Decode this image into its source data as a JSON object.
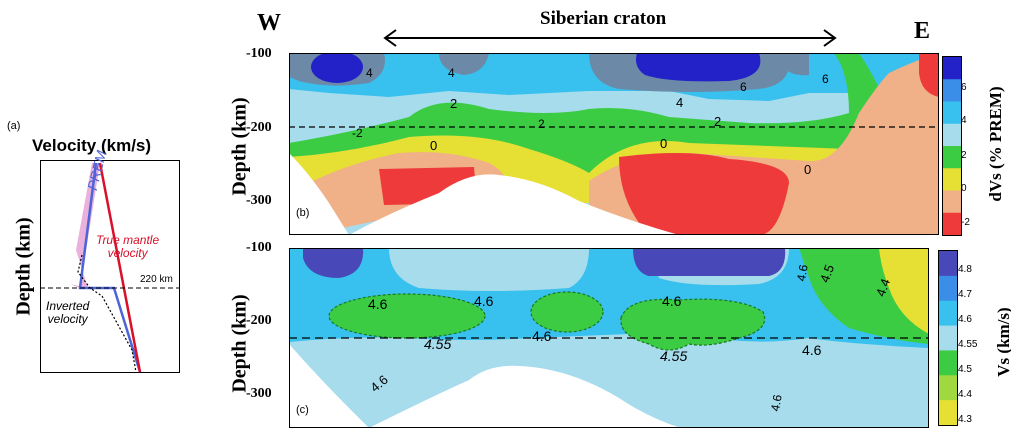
{
  "panel_a": {
    "label": "(a)",
    "title": "Velocity (km/s)",
    "ylabel": "Depth (km)",
    "prem": "PREM",
    "true_vel_line1": "True mantle",
    "true_vel_line2": "velocity",
    "depth_220": "220 km",
    "inverted_line1": "Inverted",
    "inverted_line2": "velocity"
  },
  "header": {
    "west": "W",
    "east": "E",
    "craton": "Siberian craton"
  },
  "panel_b": {
    "label": "(b)",
    "ylabel": "Depth (km)",
    "yticks": [
      "-100",
      "-200",
      "-300"
    ],
    "contour_labels": [
      "4",
      "4",
      "4",
      "2",
      "2",
      "2",
      "0",
      "0",
      "0",
      "6",
      "-2",
      "6"
    ],
    "colorbar": {
      "label": "dVs (% PREM)",
      "ticks": [
        "6",
        "4",
        "2",
        "0",
        "-2"
      ],
      "colors": [
        "#2222c8",
        "#3a8ee8",
        "#38c0ee",
        "#a6dcec",
        "#3ccc44",
        "#e6e034",
        "#f0b088",
        "#ee3a3a"
      ]
    }
  },
  "panel_c": {
    "label": "(c)",
    "ylabel": "Depth (km)",
    "yticks": [
      "-100",
      "-200",
      "-300"
    ],
    "contour_labels": [
      "4.6",
      "4.6",
      "4.6",
      "4.55",
      "4.6",
      "4.55",
      "4.6",
      "4.6",
      "4.6",
      "4.6",
      "4.5",
      "4.4"
    ],
    "colorbar": {
      "label": "Vs (km/s)",
      "ticks": [
        "4.8",
        "4.7",
        "4.6",
        "4.55",
        "4.5",
        "4.4",
        "4.3"
      ],
      "colors": [
        "#4848b8",
        "#3a8ee8",
        "#38c0ee",
        "#a6dcec",
        "#3ccc44",
        "#a0d840",
        "#e6e034"
      ]
    }
  }
}
